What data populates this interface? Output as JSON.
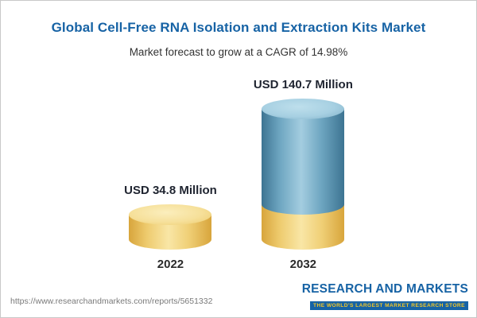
{
  "header": {
    "title": "Global Cell-Free RNA Isolation and Extraction Kits Market",
    "subtitle": "Market forecast to grow at a CAGR of 14.98%"
  },
  "chart_data": {
    "type": "bar",
    "categories": [
      "2022",
      "2032"
    ],
    "values": [
      34.8,
      140.7
    ],
    "value_labels": [
      "USD 34.8 Million",
      "USD 140.7 Million"
    ],
    "title": "Global Cell-Free RNA Isolation and Extraction Kits Market",
    "subtitle": "Market forecast to grow at a CAGR of 14.98%",
    "xlabel": "",
    "ylabel": "USD Million",
    "ylim": [
      0,
      160
    ],
    "cagr_percent": 14.98,
    "legend_position": "none",
    "grid": false,
    "colors": {
      "bar_2022": "#f0cf72",
      "bar_2032_top": "#6ea6c1",
      "bar_2032_base": "#f0cf72",
      "title_blue": "#1763a5"
    }
  },
  "footer": {
    "source_url": "https://www.researchandmarkets.com/reports/5651332",
    "logo": {
      "name": "RESEARCH AND MARKETS",
      "tagline": "THE WORLD'S LARGEST MARKET RESEARCH STORE"
    }
  }
}
